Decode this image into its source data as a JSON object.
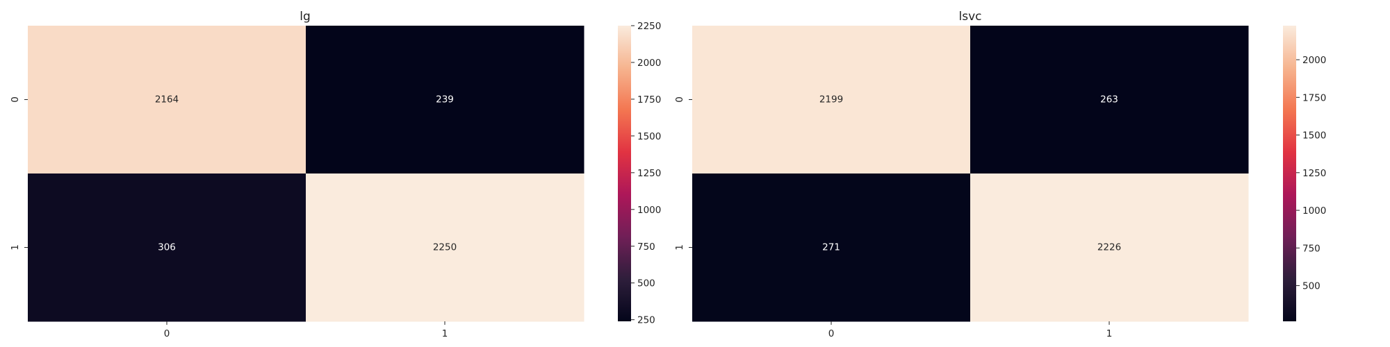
{
  "chart_data": [
    {
      "type": "heatmap",
      "title": "lg",
      "x_ticks": [
        "0",
        "1"
      ],
      "y_ticks": [
        "0",
        "1"
      ],
      "matrix": [
        [
          2164,
          239
        ],
        [
          306,
          2250
        ]
      ],
      "colormap": "rocket",
      "vmin": 239,
      "vmax": 2250,
      "colorbar_ticks": [
        250,
        500,
        750,
        1000,
        1250,
        1500,
        1750,
        2000,
        2250
      ]
    },
    {
      "type": "heatmap",
      "title": "lsvc",
      "x_ticks": [
        "0",
        "1"
      ],
      "y_ticks": [
        "0",
        "1"
      ],
      "matrix": [
        [
          2199,
          263
        ],
        [
          271,
          2226
        ]
      ],
      "colormap": "rocket",
      "vmin": 263,
      "vmax": 2226,
      "colorbar_ticks": [
        500,
        750,
        1000,
        1250,
        1500,
        1750,
        2000
      ]
    }
  ],
  "colors": {
    "rocket_stops": [
      "#03051a",
      "#2e1e3b",
      "#701f57",
      "#ad1759",
      "#e13342",
      "#f37651",
      "#f6b48f",
      "#faebdd"
    ],
    "label_dark": "#262626",
    "label_light": "#ffffff"
  }
}
